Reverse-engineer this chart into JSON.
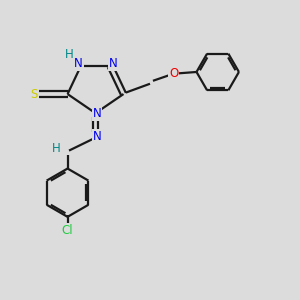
{
  "background_color": "#dcdcdc",
  "bond_color": "#1a1a1a",
  "atom_colors": {
    "N": "#0000ee",
    "S": "#cccc00",
    "O": "#ee0000",
    "Cl": "#22cc44",
    "H": "#008888",
    "C": "#1a1a1a"
  },
  "figsize": [
    3.0,
    3.0
  ],
  "dpi": 100
}
